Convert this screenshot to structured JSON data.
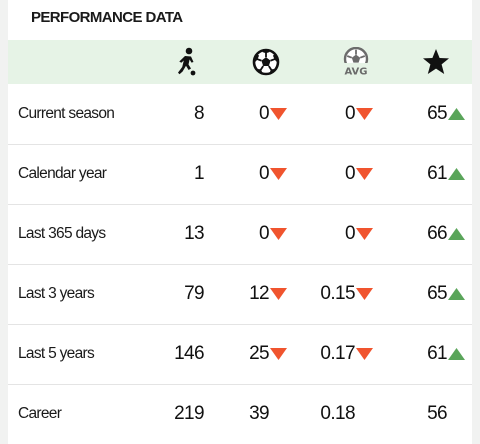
{
  "title": "PERFORMANCE DATA",
  "columns": [
    {
      "icon": "player-running-icon"
    },
    {
      "icon": "football-icon"
    },
    {
      "icon": "football-avg-icon",
      "badge": "AVG"
    },
    {
      "icon": "star-icon"
    }
  ],
  "colors": {
    "up": "#5aa55a",
    "down": "#f0542e",
    "header_bg": "#e6f3e6"
  },
  "rows": [
    {
      "label": "Current season",
      "apps": "8",
      "goals": {
        "value": "0",
        "trend": "down"
      },
      "avg": {
        "value": "0",
        "trend": "down"
      },
      "rating": {
        "value": "65",
        "trend": "up"
      }
    },
    {
      "label": "Calendar year",
      "apps": "1",
      "goals": {
        "value": "0",
        "trend": "down"
      },
      "avg": {
        "value": "0",
        "trend": "down"
      },
      "rating": {
        "value": "61",
        "trend": "up"
      }
    },
    {
      "label": "Last 365 days",
      "apps": "13",
      "goals": {
        "value": "0",
        "trend": "down"
      },
      "avg": {
        "value": "0",
        "trend": "down"
      },
      "rating": {
        "value": "66",
        "trend": "up"
      }
    },
    {
      "label": "Last 3 years",
      "apps": "79",
      "goals": {
        "value": "12",
        "trend": "down"
      },
      "avg": {
        "value": "0.15",
        "trend": "down"
      },
      "rating": {
        "value": "65",
        "trend": "up"
      }
    },
    {
      "label": "Last 5 years",
      "apps": "146",
      "goals": {
        "value": "25",
        "trend": "down"
      },
      "avg": {
        "value": "0.17",
        "trend": "down"
      },
      "rating": {
        "value": "61",
        "trend": "up"
      }
    },
    {
      "label": "Career",
      "apps": "219",
      "goals": {
        "value": "39",
        "trend": "none"
      },
      "avg": {
        "value": "0.18",
        "trend": "none"
      },
      "rating": {
        "value": "56",
        "trend": "none"
      }
    }
  ]
}
